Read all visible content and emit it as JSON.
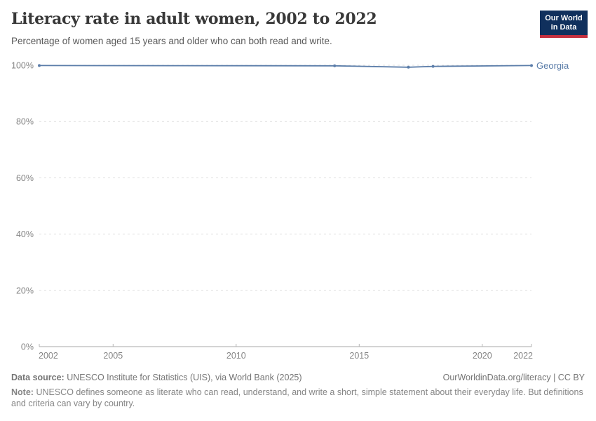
{
  "header": {
    "title": "Literacy rate in adult women, 2002 to 2022",
    "subtitle": "Percentage of women aged 15 years and older who can both read and write.",
    "logo": {
      "line1": "Our World",
      "line2": "in Data",
      "bg_color": "#10305d",
      "bar_color": "#c5303f"
    }
  },
  "chart_data": {
    "type": "line",
    "title": "Literacy rate in adult women, 2002 to 2022",
    "xlabel": "",
    "ylabel": "",
    "xlim": [
      2002,
      2022
    ],
    "ylim": [
      0,
      100
    ],
    "grid": "horizontal-dashed",
    "legend_position": "end-of-line-label",
    "xticks": [
      {
        "v": 2002,
        "label": "2002"
      },
      {
        "v": 2005,
        "label": "2005"
      },
      {
        "v": 2010,
        "label": "2010"
      },
      {
        "v": 2015,
        "label": "2015"
      },
      {
        "v": 2020,
        "label": "2020"
      },
      {
        "v": 2022,
        "label": "2022"
      }
    ],
    "yticks": [
      {
        "v": 0,
        "label": "0%"
      },
      {
        "v": 20,
        "label": "20%"
      },
      {
        "v": 40,
        "label": "40%"
      },
      {
        "v": 60,
        "label": "60%"
      },
      {
        "v": 80,
        "label": "80%"
      },
      {
        "v": 100,
        "label": "100%"
      }
    ],
    "series": [
      {
        "name": "Georgia",
        "color": "#5b7da9",
        "points": [
          {
            "x": 2002,
            "y": 99.9
          },
          {
            "x": 2014,
            "y": 99.8
          },
          {
            "x": 2017,
            "y": 99.3
          },
          {
            "x": 2018,
            "y": 99.6
          },
          {
            "x": 2022,
            "y": 99.9
          }
        ]
      }
    ]
  },
  "footer": {
    "data_source_label": "Data source:",
    "data_source_text": "UNESCO Institute for Statistics (UIS), via World Bank (2025)",
    "attribution": "OurWorldinData.org/literacy | CC BY",
    "note_label": "Note:",
    "note_text": "UNESCO defines someone as literate who can read, understand, and write a short, simple statement about their everyday life. But definitions and criteria can vary by country."
  }
}
